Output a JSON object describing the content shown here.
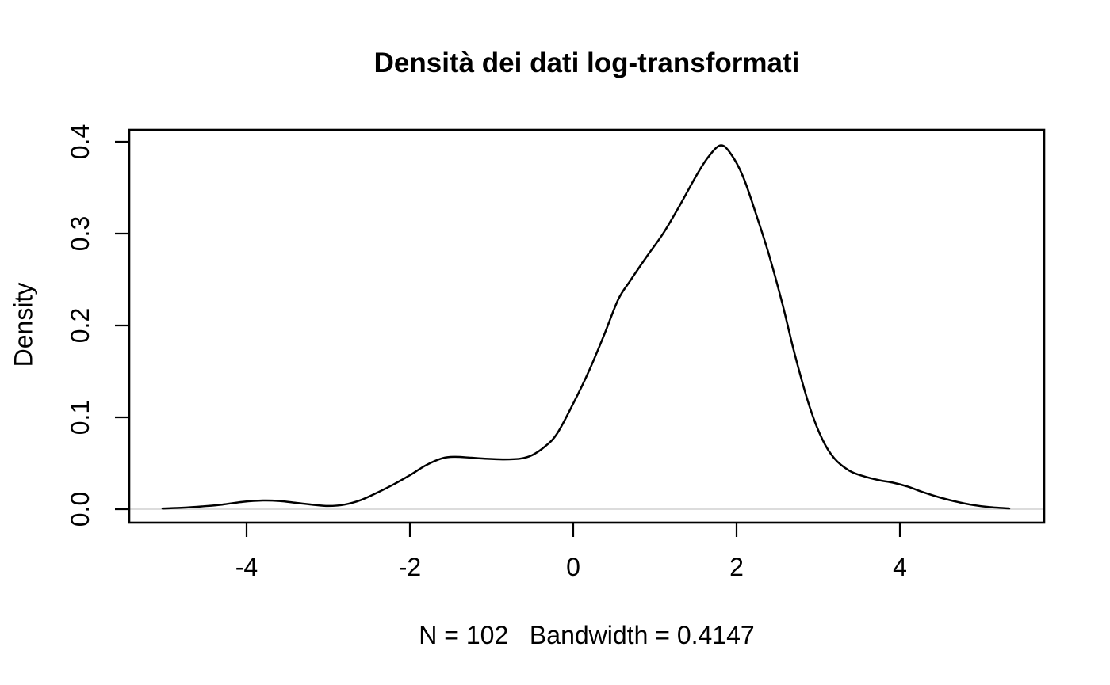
{
  "title": "Densità dei dati log-transformati",
  "x_axis_label": "N = 102   Bandwidth = 0.4147",
  "y_axis_label": "Density",
  "chart_data": {
    "type": "line",
    "title": "Densità dei dati log-transformati",
    "xlabel": "N = 102   Bandwidth = 0.4147",
    "ylabel": "Density",
    "n_points": 102,
    "bandwidth": 0.4147,
    "x_tick_labels": [
      "-4",
      "-2",
      "0",
      "2",
      "4"
    ],
    "x_tick_values": [
      -4,
      -2,
      0,
      2,
      4
    ],
    "y_tick_labels": [
      "0.0",
      "0.1",
      "0.2",
      "0.3",
      "0.4"
    ],
    "y_tick_values": [
      0,
      0.1,
      0.2,
      0.3,
      0.4
    ],
    "xlim": [
      -5.44,
      5.77
    ],
    "ylim": [
      0,
      0.413
    ],
    "grid": false,
    "legend": "none",
    "line_color": "#000000",
    "baseline_color": "#dcdcdc",
    "box_color": "#000000",
    "series": [
      {
        "name": "density",
        "points": [
          [
            -5.03,
            0.0008
          ],
          [
            -4.8,
            0.0015
          ],
          [
            -4.55,
            0.003
          ],
          [
            -4.3,
            0.005
          ],
          [
            -4.05,
            0.008
          ],
          [
            -3.8,
            0.0095
          ],
          [
            -3.6,
            0.009
          ],
          [
            -3.4,
            0.007
          ],
          [
            -3.2,
            0.005
          ],
          [
            -3.0,
            0.0035
          ],
          [
            -2.8,
            0.005
          ],
          [
            -2.6,
            0.01
          ],
          [
            -2.4,
            0.018
          ],
          [
            -2.2,
            0.027
          ],
          [
            -2.0,
            0.037
          ],
          [
            -1.8,
            0.048
          ],
          [
            -1.6,
            0.0555
          ],
          [
            -1.45,
            0.057
          ],
          [
            -1.25,
            0.056
          ],
          [
            -1.05,
            0.0548
          ],
          [
            -0.85,
            0.0542
          ],
          [
            -0.65,
            0.055
          ],
          [
            -0.5,
            0.059
          ],
          [
            -0.35,
            0.068
          ],
          [
            -0.2,
            0.082
          ],
          [
            0.0,
            0.115
          ],
          [
            0.2,
            0.152
          ],
          [
            0.38,
            0.19
          ],
          [
            0.55,
            0.228
          ],
          [
            0.7,
            0.249
          ],
          [
            0.9,
            0.275
          ],
          [
            1.1,
            0.3
          ],
          [
            1.3,
            0.33
          ],
          [
            1.5,
            0.362
          ],
          [
            1.65,
            0.383
          ],
          [
            1.8,
            0.396
          ],
          [
            1.92,
            0.388
          ],
          [
            2.08,
            0.362
          ],
          [
            2.25,
            0.318
          ],
          [
            2.4,
            0.276
          ],
          [
            2.56,
            0.224
          ],
          [
            2.72,
            0.166
          ],
          [
            2.9,
            0.11
          ],
          [
            3.05,
            0.076
          ],
          [
            3.2,
            0.055
          ],
          [
            3.38,
            0.042
          ],
          [
            3.55,
            0.036
          ],
          [
            3.75,
            0.0315
          ],
          [
            3.92,
            0.0288
          ],
          [
            4.1,
            0.0245
          ],
          [
            4.3,
            0.018
          ],
          [
            4.5,
            0.0125
          ],
          [
            4.7,
            0.008
          ],
          [
            4.9,
            0.0045
          ],
          [
            5.1,
            0.0022
          ],
          [
            5.34,
            0.0008
          ]
        ]
      }
    ]
  }
}
